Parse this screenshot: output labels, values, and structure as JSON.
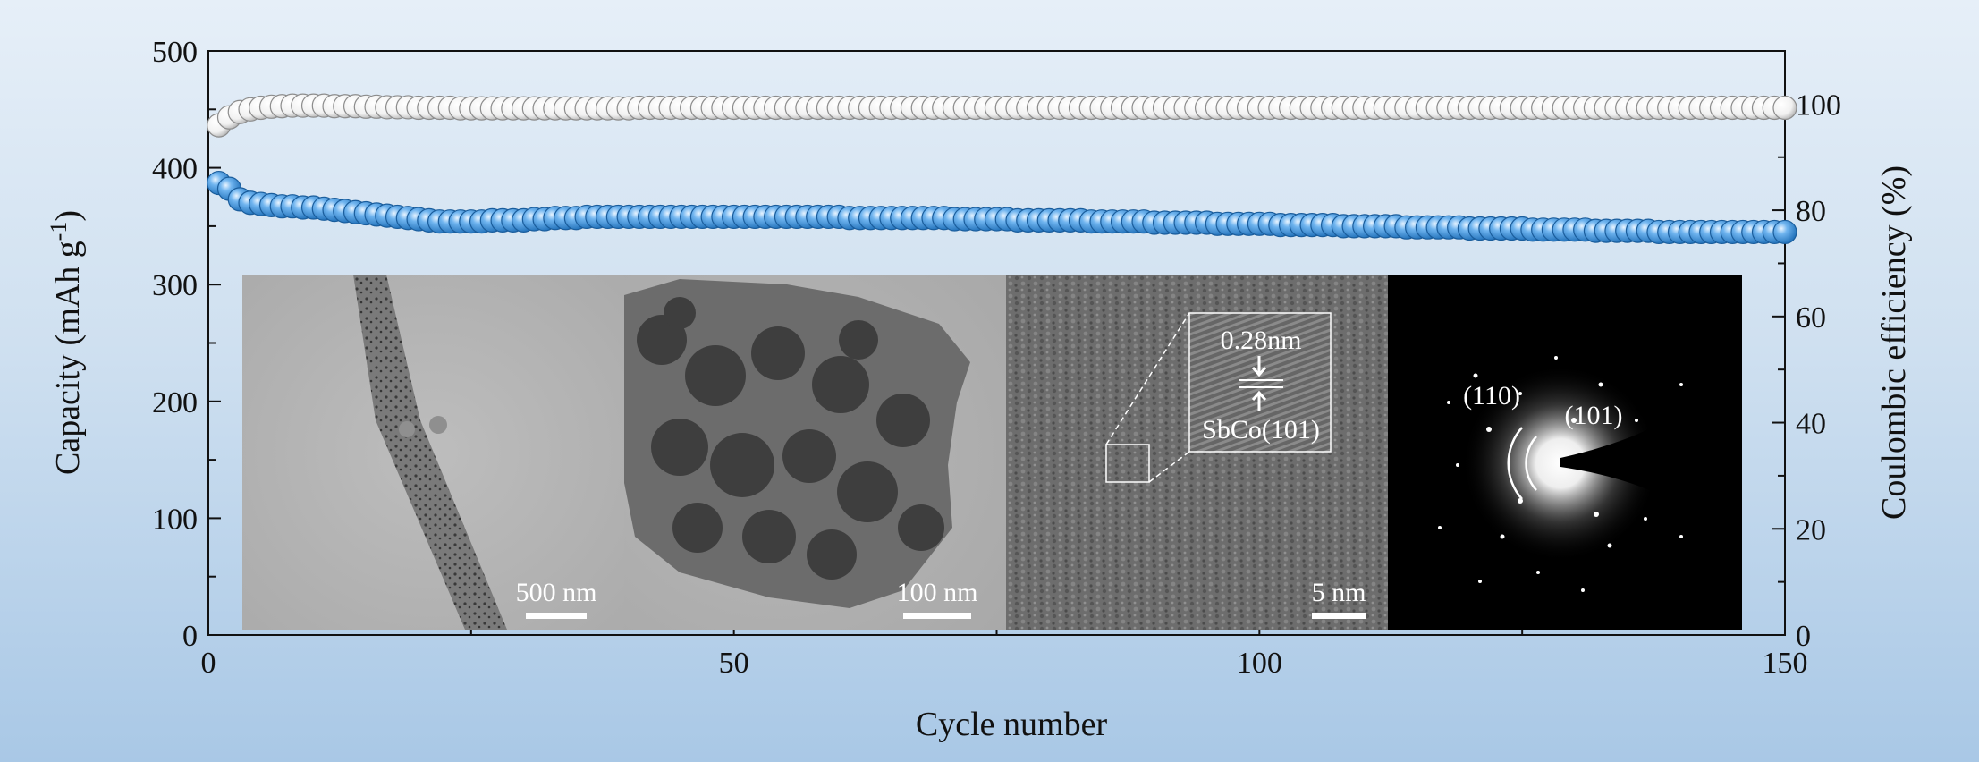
{
  "chart_data": {
    "type": "scatter",
    "xlabel": "Cycle number",
    "ylabel_left": "Capacity (mAh g",
    "ylabel_left_sup": "-1",
    "ylabel_left_end": ")",
    "ylabel_right": "Coulombic efficiency (%)",
    "xlim": [
      0,
      150
    ],
    "ylim_left": [
      0,
      500
    ],
    "ylim_right": [
      0,
      110
    ],
    "xticks": [
      "0",
      "50",
      "100",
      "150"
    ],
    "yticks_left": [
      "0",
      "100",
      "200",
      "300",
      "400",
      "500"
    ],
    "yticks_right": [
      "0",
      "20",
      "40",
      "60",
      "80",
      "100"
    ],
    "series": [
      {
        "axis": "left",
        "color": "#3b8fd9",
        "points": [
          [
            1,
            387
          ],
          [
            2,
            382
          ],
          [
            3,
            373
          ],
          [
            4,
            370
          ],
          [
            5,
            369
          ],
          [
            6,
            368
          ],
          [
            7,
            367
          ],
          [
            8,
            367
          ],
          [
            9,
            366
          ],
          [
            10,
            366
          ],
          [
            11,
            365
          ],
          [
            12,
            364
          ],
          [
            13,
            363
          ],
          [
            14,
            362
          ],
          [
            15,
            361
          ],
          [
            16,
            360
          ],
          [
            17,
            359
          ],
          [
            18,
            358
          ],
          [
            19,
            357
          ],
          [
            20,
            356
          ],
          [
            21,
            355
          ],
          [
            22,
            354
          ],
          [
            23,
            354
          ],
          [
            24,
            354
          ],
          [
            25,
            354
          ],
          [
            26,
            354
          ],
          [
            27,
            355
          ],
          [
            28,
            355
          ],
          [
            29,
            355
          ],
          [
            30,
            355
          ],
          [
            31,
            356
          ],
          [
            32,
            356
          ],
          [
            33,
            357
          ],
          [
            34,
            357
          ],
          [
            35,
            357
          ],
          [
            36,
            358
          ],
          [
            37,
            358
          ],
          [
            38,
            358
          ],
          [
            39,
            358
          ],
          [
            40,
            358
          ],
          [
            41,
            358
          ],
          [
            42,
            358
          ],
          [
            43,
            358
          ],
          [
            44,
            358
          ],
          [
            45,
            358
          ],
          [
            46,
            358
          ],
          [
            47,
            358
          ],
          [
            48,
            358
          ],
          [
            49,
            358
          ],
          [
            50,
            358
          ],
          [
            51,
            358
          ],
          [
            52,
            358
          ],
          [
            53,
            358
          ],
          [
            54,
            358
          ],
          [
            55,
            358
          ],
          [
            56,
            358
          ],
          [
            57,
            358
          ],
          [
            58,
            358
          ],
          [
            59,
            358
          ],
          [
            60,
            358
          ],
          [
            61,
            357
          ],
          [
            62,
            357
          ],
          [
            63,
            357
          ],
          [
            64,
            357
          ],
          [
            65,
            357
          ],
          [
            66,
            357
          ],
          [
            67,
            357
          ],
          [
            68,
            357
          ],
          [
            69,
            357
          ],
          [
            70,
            357
          ],
          [
            71,
            356
          ],
          [
            72,
            356
          ],
          [
            73,
            356
          ],
          [
            74,
            356
          ],
          [
            75,
            356
          ],
          [
            76,
            356
          ],
          [
            77,
            355
          ],
          [
            78,
            355
          ],
          [
            79,
            355
          ],
          [
            80,
            355
          ],
          [
            81,
            355
          ],
          [
            82,
            355
          ],
          [
            83,
            355
          ],
          [
            84,
            354
          ],
          [
            85,
            354
          ],
          [
            86,
            354
          ],
          [
            87,
            354
          ],
          [
            88,
            354
          ],
          [
            89,
            354
          ],
          [
            90,
            353
          ],
          [
            91,
            353
          ],
          [
            92,
            353
          ],
          [
            93,
            353
          ],
          [
            94,
            353
          ],
          [
            95,
            353
          ],
          [
            96,
            352
          ],
          [
            97,
            352
          ],
          [
            98,
            352
          ],
          [
            99,
            352
          ],
          [
            100,
            352
          ],
          [
            101,
            352
          ],
          [
            102,
            351
          ],
          [
            103,
            351
          ],
          [
            104,
            351
          ],
          [
            105,
            351
          ],
          [
            106,
            351
          ],
          [
            107,
            351
          ],
          [
            108,
            350
          ],
          [
            109,
            350
          ],
          [
            110,
            350
          ],
          [
            111,
            350
          ],
          [
            112,
            350
          ],
          [
            113,
            350
          ],
          [
            114,
            349
          ],
          [
            115,
            349
          ],
          [
            116,
            349
          ],
          [
            117,
            349
          ],
          [
            118,
            349
          ],
          [
            119,
            349
          ],
          [
            120,
            348
          ],
          [
            121,
            348
          ],
          [
            122,
            348
          ],
          [
            123,
            348
          ],
          [
            124,
            348
          ],
          [
            125,
            348
          ],
          [
            126,
            347
          ],
          [
            127,
            347
          ],
          [
            128,
            347
          ],
          [
            129,
            347
          ],
          [
            130,
            347
          ],
          [
            131,
            347
          ],
          [
            132,
            346
          ],
          [
            133,
            346
          ],
          [
            134,
            346
          ],
          [
            135,
            346
          ],
          [
            136,
            346
          ],
          [
            137,
            346
          ],
          [
            138,
            345
          ],
          [
            139,
            345
          ],
          [
            140,
            345
          ],
          [
            141,
            345
          ],
          [
            142,
            345
          ],
          [
            143,
            345
          ],
          [
            144,
            345
          ],
          [
            145,
            345
          ],
          [
            146,
            345
          ],
          [
            147,
            345
          ],
          [
            148,
            345
          ],
          [
            149,
            345
          ],
          [
            150,
            345
          ]
        ]
      },
      {
        "axis": "right",
        "color": "#ffffff",
        "points": [
          [
            1,
            96
          ],
          [
            2,
            97.5
          ],
          [
            3,
            98.5
          ],
          [
            4,
            99
          ],
          [
            5,
            99.3
          ],
          [
            6,
            99.5
          ],
          [
            7,
            99.6
          ],
          [
            8,
            99.7
          ],
          [
            9,
            99.7
          ],
          [
            10,
            99.7
          ],
          [
            11,
            99.7
          ],
          [
            12,
            99.6
          ],
          [
            13,
            99.6
          ],
          [
            14,
            99.6
          ],
          [
            15,
            99.5
          ],
          [
            16,
            99.5
          ],
          [
            17,
            99.4
          ],
          [
            18,
            99.4
          ],
          [
            19,
            99.4
          ],
          [
            20,
            99.3
          ],
          [
            21,
            99.3
          ],
          [
            22,
            99.3
          ],
          [
            23,
            99.3
          ],
          [
            24,
            99.2
          ],
          [
            25,
            99.2
          ],
          [
            26,
            99.2
          ],
          [
            27,
            99.2
          ],
          [
            28,
            99.2
          ],
          [
            29,
            99.2
          ],
          [
            30,
            99.2
          ],
          [
            31,
            99.2
          ],
          [
            32,
            99.2
          ],
          [
            33,
            99.2
          ],
          [
            34,
            99.2
          ],
          [
            35,
            99.2
          ],
          [
            36,
            99.2
          ],
          [
            37,
            99.2
          ],
          [
            38,
            99.2
          ],
          [
            39,
            99.2
          ],
          [
            40,
            99.2
          ],
          [
            41,
            99.3
          ],
          [
            42,
            99.3
          ],
          [
            43,
            99.3
          ],
          [
            44,
            99.3
          ],
          [
            45,
            99.3
          ],
          [
            46,
            99.3
          ],
          [
            47,
            99.3
          ],
          [
            48,
            99.3
          ],
          [
            49,
            99.3
          ],
          [
            50,
            99.3
          ],
          [
            51,
            99.3
          ],
          [
            52,
            99.3
          ],
          [
            53,
            99.3
          ],
          [
            54,
            99.3
          ],
          [
            55,
            99.3
          ],
          [
            56,
            99.3
          ],
          [
            57,
            99.3
          ],
          [
            58,
            99.3
          ],
          [
            59,
            99.3
          ],
          [
            60,
            99.3
          ],
          [
            61,
            99.3
          ],
          [
            62,
            99.3
          ],
          [
            63,
            99.3
          ],
          [
            64,
            99.3
          ],
          [
            65,
            99.3
          ],
          [
            66,
            99.3
          ],
          [
            67,
            99.3
          ],
          [
            68,
            99.3
          ],
          [
            69,
            99.3
          ],
          [
            70,
            99.3
          ],
          [
            71,
            99.3
          ],
          [
            72,
            99.3
          ],
          [
            73,
            99.3
          ],
          [
            74,
            99.3
          ],
          [
            75,
            99.3
          ],
          [
            76,
            99.3
          ],
          [
            77,
            99.3
          ],
          [
            78,
            99.3
          ],
          [
            79,
            99.3
          ],
          [
            80,
            99.3
          ],
          [
            81,
            99.3
          ],
          [
            82,
            99.3
          ],
          [
            83,
            99.3
          ],
          [
            84,
            99.3
          ],
          [
            85,
            99.3
          ],
          [
            86,
            99.3
          ],
          [
            87,
            99.3
          ],
          [
            88,
            99.3
          ],
          [
            89,
            99.3
          ],
          [
            90,
            99.3
          ],
          [
            91,
            99.3
          ],
          [
            92,
            99.3
          ],
          [
            93,
            99.3
          ],
          [
            94,
            99.3
          ],
          [
            95,
            99.3
          ],
          [
            96,
            99.3
          ],
          [
            97,
            99.3
          ],
          [
            98,
            99.3
          ],
          [
            99,
            99.3
          ],
          [
            100,
            99.3
          ],
          [
            101,
            99.3
          ],
          [
            102,
            99.3
          ],
          [
            103,
            99.3
          ],
          [
            104,
            99.3
          ],
          [
            105,
            99.3
          ],
          [
            106,
            99.3
          ],
          [
            107,
            99.3
          ],
          [
            108,
            99.3
          ],
          [
            109,
            99.3
          ],
          [
            110,
            99.3
          ],
          [
            111,
            99.3
          ],
          [
            112,
            99.3
          ],
          [
            113,
            99.3
          ],
          [
            114,
            99.3
          ],
          [
            115,
            99.3
          ],
          [
            116,
            99.3
          ],
          [
            117,
            99.3
          ],
          [
            118,
            99.3
          ],
          [
            119,
            99.3
          ],
          [
            120,
            99.3
          ],
          [
            121,
            99.3
          ],
          [
            122,
            99.3
          ],
          [
            123,
            99.3
          ],
          [
            124,
            99.3
          ],
          [
            125,
            99.3
          ],
          [
            126,
            99.3
          ],
          [
            127,
            99.3
          ],
          [
            128,
            99.3
          ],
          [
            129,
            99.3
          ],
          [
            130,
            99.3
          ],
          [
            131,
            99.3
          ],
          [
            132,
            99.3
          ],
          [
            133,
            99.3
          ],
          [
            134,
            99.3
          ],
          [
            135,
            99.3
          ],
          [
            136,
            99.3
          ],
          [
            137,
            99.3
          ],
          [
            138,
            99.3
          ],
          [
            139,
            99.3
          ],
          [
            140,
            99.3
          ],
          [
            141,
            99.3
          ],
          [
            142,
            99.3
          ],
          [
            143,
            99.3
          ],
          [
            144,
            99.3
          ],
          [
            145,
            99.3
          ],
          [
            146,
            99.3
          ],
          [
            147,
            99.3
          ],
          [
            148,
            99.3
          ],
          [
            149,
            99.3
          ],
          [
            150,
            99.3
          ]
        ]
      }
    ],
    "grid": false,
    "legend": "none"
  },
  "insets": [
    {
      "scale_bar_label": "500 nm"
    },
    {
      "scale_bar_label": "100 nm"
    },
    {
      "scale_bar_label": "5 nm",
      "zoom_label_top": "0.28nm",
      "zoom_label_bottom": "SbCo(101)"
    },
    {
      "ring_label_1": "(110)",
      "ring_label_2": "(101)"
    }
  ]
}
